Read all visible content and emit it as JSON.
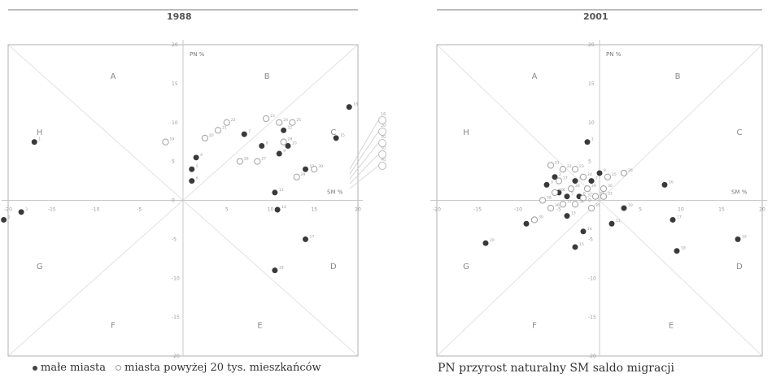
{
  "chart_data": [
    {
      "type": "scatter",
      "title": "1988",
      "xlabel": "SM %",
      "ylabel": "PN %",
      "xlim": [
        -20,
        20
      ],
      "ylim": [
        -20,
        20
      ],
      "x_ticks": [
        "-20",
        "-15",
        "-10",
        "-5",
        "0",
        "5",
        "10",
        "15",
        "20"
      ],
      "y_ticks": [
        "-20",
        "-15",
        "-10",
        "-5",
        "0",
        "5",
        "10",
        "15",
        "20"
      ],
      "sectors": [
        "A",
        "B",
        "C",
        "D",
        "E",
        "F",
        "G",
        "H"
      ],
      "series": [
        {
          "name": "małe miasta",
          "points": [
            {
              "x": -17,
              "y": 7.5,
              "label": "1"
            },
            {
              "x": -20.5,
              "y": -2.5,
              "label": "2"
            },
            {
              "x": -18.5,
              "y": -1.5,
              "label": "3"
            },
            {
              "x": 1.5,
              "y": 5.5,
              "label": "4"
            },
            {
              "x": 1,
              "y": 4,
              "label": "5"
            },
            {
              "x": 1,
              "y": 2.5,
              "label": "6"
            },
            {
              "x": 7,
              "y": 8.5,
              "label": "7"
            },
            {
              "x": 9,
              "y": 7,
              "label": "8"
            },
            {
              "x": 11,
              "y": 6,
              "label": "9"
            },
            {
              "x": 12,
              "y": 7,
              "label": "10"
            },
            {
              "x": 11.5,
              "y": 9,
              "label": "11"
            },
            {
              "x": 14,
              "y": 4,
              "label": "12"
            },
            {
              "x": 10.5,
              "y": 1,
              "label": "13"
            },
            {
              "x": 10.8,
              "y": -1.2,
              "label": "14"
            },
            {
              "x": 17.5,
              "y": 8,
              "label": "15"
            },
            {
              "x": 19,
              "y": 12,
              "label": "16"
            },
            {
              "x": 14,
              "y": -5,
              "label": "17"
            },
            {
              "x": 10.5,
              "y": -9,
              "label": "18"
            }
          ]
        },
        {
          "name": "miasta powyżej 20 tys. mieszkańców",
          "points": [
            {
              "x": -2,
              "y": 7.5,
              "label": "19"
            },
            {
              "x": 2.5,
              "y": 8,
              "label": "20"
            },
            {
              "x": 4,
              "y": 9,
              "label": "21"
            },
            {
              "x": 5,
              "y": 10,
              "label": "22"
            },
            {
              "x": 9.5,
              "y": 10.5,
              "label": "23"
            },
            {
              "x": 11,
              "y": 10,
              "label": "24"
            },
            {
              "x": 12.5,
              "y": 10,
              "label": "25"
            },
            {
              "x": 6.5,
              "y": 5,
              "label": "26"
            },
            {
              "x": 8.5,
              "y": 5,
              "label": "27"
            },
            {
              "x": 11.5,
              "y": 7.5,
              "label": "28"
            },
            {
              "x": 13,
              "y": 3,
              "label": "29"
            },
            {
              "x": 15,
              "y": 4,
              "label": "30"
            }
          ]
        }
      ],
      "legend_values": [
        "16",
        "20",
        "30",
        "50",
        "40"
      ]
    },
    {
      "type": "scatter",
      "title": "2001",
      "xlabel": "SM %",
      "ylabel": "PN %",
      "xlim": [
        -20,
        20
      ],
      "ylim": [
        -20,
        20
      ],
      "x_ticks": [
        "-20",
        "-15",
        "-10",
        "-5",
        "0",
        "5",
        "10",
        "15",
        "20"
      ],
      "y_ticks": [
        "-20",
        "-15",
        "-10",
        "-5",
        "0",
        "5",
        "10",
        "15",
        "20"
      ],
      "sectors": [
        "A",
        "B",
        "C",
        "D",
        "E",
        "F",
        "G",
        "H"
      ],
      "series": [
        {
          "name": "małe miasta",
          "points": [
            {
              "x": -1.5,
              "y": 7.5,
              "label": "1"
            },
            {
              "x": -5.5,
              "y": 3,
              "label": "2"
            },
            {
              "x": -6.5,
              "y": 2,
              "label": "3"
            },
            {
              "x": -5,
              "y": 1,
              "label": "4"
            },
            {
              "x": -4,
              "y": 0.5,
              "label": "5"
            },
            {
              "x": -2.5,
              "y": 0.5,
              "label": "6"
            },
            {
              "x": -1,
              "y": 2.5,
              "label": "7"
            },
            {
              "x": 0,
              "y": 3.5,
              "label": "8"
            },
            {
              "x": -3,
              "y": 2.5,
              "label": "9"
            },
            {
              "x": 3,
              "y": -1,
              "label": "10"
            },
            {
              "x": 1.5,
              "y": -3,
              "label": "11"
            },
            {
              "x": -9,
              "y": -3,
              "label": "12"
            },
            {
              "x": -4,
              "y": -2,
              "label": "13"
            },
            {
              "x": -2,
              "y": -4,
              "label": "14"
            },
            {
              "x": -3,
              "y": -6,
              "label": "15"
            },
            {
              "x": 8,
              "y": 2,
              "label": "16"
            },
            {
              "x": 9,
              "y": -2.5,
              "label": "17"
            },
            {
              "x": 9.5,
              "y": -6.5,
              "label": "18"
            },
            {
              "x": 17,
              "y": -5,
              "label": "19"
            },
            {
              "x": -14,
              "y": -5.5,
              "label": "20"
            }
          ]
        },
        {
          "name": "miasta powyżej 20 tys. mieszkańców",
          "points": [
            {
              "x": -6,
              "y": 4.5,
              "label": "21"
            },
            {
              "x": -4.5,
              "y": 4,
              "label": "22"
            },
            {
              "x": -3,
              "y": 4,
              "label": "23"
            },
            {
              "x": -2,
              "y": 3,
              "label": "24"
            },
            {
              "x": 1,
              "y": 3,
              "label": "25"
            },
            {
              "x": 3,
              "y": 3.5,
              "label": "26"
            },
            {
              "x": -5,
              "y": 2.5,
              "label": "27"
            },
            {
              "x": -3.5,
              "y": 1.5,
              "label": "28"
            },
            {
              "x": -1.5,
              "y": 1.5,
              "label": "29"
            },
            {
              "x": 0.5,
              "y": 1.5,
              "label": "30"
            },
            {
              "x": -2,
              "y": 0.3,
              "label": "31"
            },
            {
              "x": -0.5,
              "y": 0.5,
              "label": "32"
            },
            {
              "x": 0.5,
              "y": 0.5,
              "label": "33"
            },
            {
              "x": -3,
              "y": -0.5,
              "label": "34"
            },
            {
              "x": -1,
              "y": -1,
              "label": "35"
            },
            {
              "x": -6,
              "y": -1,
              "label": "36"
            },
            {
              "x": -4.5,
              "y": -0.5,
              "label": "37"
            },
            {
              "x": -7,
              "y": 0,
              "label": "38"
            },
            {
              "x": -8,
              "y": -2.5,
              "label": "39"
            },
            {
              "x": -5.5,
              "y": 1,
              "label": "40"
            }
          ]
        }
      ]
    }
  ],
  "footer": {
    "legend_small": "małe miasta",
    "legend_large": "miasta powyżej 20 tys. mieszkańców",
    "abbrev_text": "PN przyrost naturalny   SM saldo migracji"
  },
  "colors": {
    "small_fill": "#3a3a3a",
    "large_fill": "#ffffff",
    "large_stroke": "#a8a8a8",
    "frame": "#b0b0b0",
    "axis": "#c8c8c8",
    "diag": "#e2e2e2",
    "text": "#999999"
  }
}
